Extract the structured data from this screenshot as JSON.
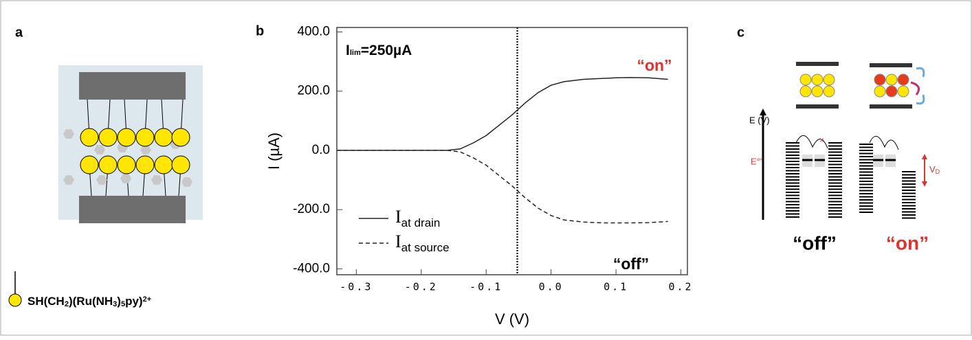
{
  "panel_a": {
    "label": "a",
    "legend_parts": [
      "SH(CH",
      "2",
      ")(Ru(NH",
      "3",
      ")",
      "5",
      "py)",
      "2+"
    ]
  },
  "chart_data": {
    "type": "line",
    "label": "b",
    "xlabel": "V (V)",
    "ylabel": "I (µA)",
    "x": [
      -0.33,
      -0.3,
      -0.25,
      -0.2,
      -0.16,
      -0.14,
      -0.12,
      -0.1,
      -0.08,
      -0.06,
      -0.04,
      -0.02,
      0,
      0.02,
      0.05,
      0.08,
      0.1,
      0.12,
      0.15,
      0.18
    ],
    "series": [
      {
        "name": "I",
        "name_subscript": "at drain",
        "color": "#222222",
        "style": "solid",
        "values": [
          0,
          0,
          0,
          0,
          0,
          5,
          25,
          50,
          85,
          120,
          160,
          195,
          220,
          232,
          240,
          243,
          245,
          246,
          245,
          240
        ]
      },
      {
        "name": "I",
        "name_subscript": "at source",
        "color": "#222222",
        "style": "dashed",
        "values": [
          0,
          0,
          0,
          0,
          0,
          -5,
          -25,
          -50,
          -85,
          -120,
          -160,
          -195,
          -220,
          -235,
          -242,
          -245,
          -245,
          -245,
          -244,
          -240
        ]
      }
    ],
    "xlim": [
      -0.33,
      0.21
    ],
    "xticks": [
      -0.3,
      -0.2,
      -0.1,
      {
        "value": 0,
        "label": "0.0"
      },
      0.1,
      0.2
    ],
    "ylim": [
      -420,
      415
    ],
    "yticks": [
      {
        "value": 400,
        "label": "400.0"
      },
      {
        "value": 200,
        "label": "200.0"
      },
      {
        "value": 0,
        "label": "0.0"
      },
      {
        "value": -200,
        "label": "-200.0"
      },
      {
        "value": -400,
        "label": "-400.0"
      }
    ],
    "vline_x": -0.052,
    "limit_parts": [
      "I",
      "lim",
      "=250µA"
    ],
    "on_label": "“on”",
    "off_label": "“off”"
  },
  "panel_c": {
    "label": "c",
    "energy_label": "E (V)",
    "formal_potential": "E°'",
    "bias_parts": [
      "V",
      "D"
    ],
    "off_label": "“off”",
    "on_label": "“on”"
  }
}
